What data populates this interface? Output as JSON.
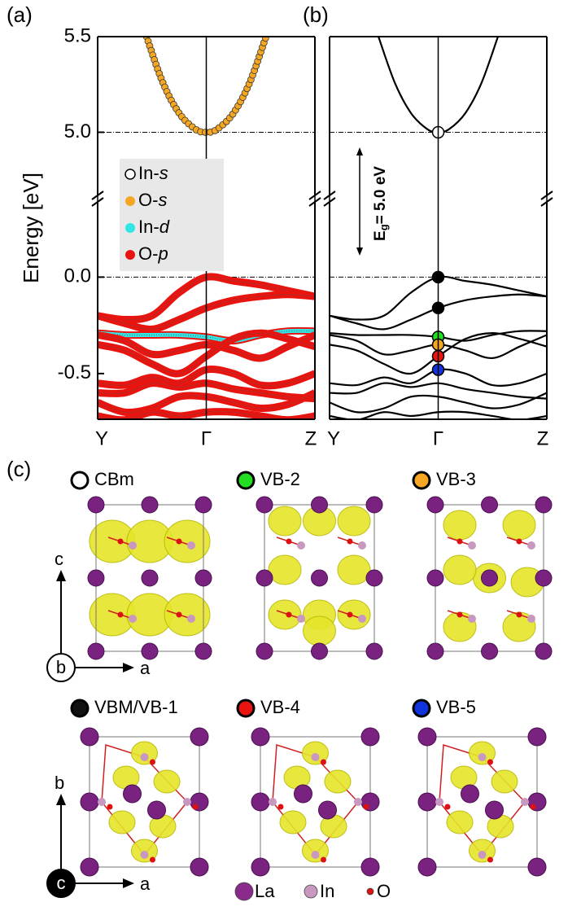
{
  "panels": {
    "a": "(a)",
    "b": "(b)",
    "c": "(c)"
  },
  "band_plot": {
    "y_label": "Energy [eV]",
    "ylim_upper": [
      4.67,
      5.5
    ],
    "ylim_lower": [
      -0.737,
      0.39
    ],
    "yticks_upper": [
      {
        "value": 5,
        "label": "5.0"
      },
      {
        "value": 5.5,
        "label": "5.5"
      }
    ],
    "yticks_lower": [
      {
        "value": 0,
        "label": "0.0"
      },
      {
        "value": -0.5,
        "label": "-0.5"
      }
    ],
    "xlim": [
      -1,
      1
    ],
    "xticks": [
      {
        "value": -1,
        "label": "Y"
      },
      {
        "value": 0,
        "label": "Γ"
      },
      {
        "value": 1,
        "label": "Z"
      }
    ],
    "reference_lines": [
      5,
      0
    ],
    "legend": [
      {
        "prefix": "In-",
        "orbital": "s",
        "color": "#ffffff"
      },
      {
        "prefix": "O-",
        "orbital": "s",
        "color": "#f5a623"
      },
      {
        "prefix": "In-",
        "orbital": "d",
        "color": "#33e6e6"
      },
      {
        "prefix": "O-",
        "orbital": "p",
        "color": "#e8140f"
      }
    ],
    "gap_label": {
      "main": "E",
      "sub": "g",
      "rest": "= 5.0 eV"
    },
    "conduction_band": {
      "x": [
        -0.55,
        -0.4,
        -0.25,
        -0.1,
        0,
        0.1,
        0.25,
        0.4,
        0.55
      ],
      "values": [
        5.5,
        5.26,
        5.1,
        5.016,
        5.0,
        5.016,
        5.1,
        5.26,
        5.5
      ]
    },
    "valence_x": [
      -1,
      -0.75,
      -0.5,
      -0.25,
      0,
      0.25,
      0.5,
      0.75,
      1
    ],
    "valence_bands": [
      [
        -0.2,
        -0.22,
        -0.2,
        -0.08,
        0,
        -0.02,
        -0.04,
        -0.07,
        -0.1
      ],
      [
        -0.2,
        -0.24,
        -0.27,
        -0.22,
        -0.16,
        -0.12,
        -0.1,
        -0.09,
        -0.1
      ],
      [
        -0.29,
        -0.3,
        -0.3,
        -0.3,
        -0.31,
        -0.33,
        -0.3,
        -0.28,
        -0.28
      ],
      [
        -0.3,
        -0.33,
        -0.4,
        -0.38,
        -0.35,
        -0.38,
        -0.42,
        -0.36,
        -0.3
      ],
      [
        -0.35,
        -0.38,
        -0.45,
        -0.5,
        -0.41,
        -0.32,
        -0.29,
        -0.32,
        -0.36
      ],
      [
        -0.55,
        -0.56,
        -0.52,
        -0.55,
        -0.48,
        -0.5,
        -0.56,
        -0.55,
        -0.5
      ],
      [
        -0.6,
        -0.6,
        -0.55,
        -0.57,
        -0.55,
        -0.58,
        -0.6,
        -0.62,
        -0.63
      ],
      [
        -0.65,
        -0.7,
        -0.68,
        -0.62,
        -0.62,
        -0.65,
        -0.68,
        -0.66,
        -0.6
      ],
      [
        -0.72,
        -0.74,
        -0.7,
        -0.72,
        -0.7,
        -0.7,
        -0.72,
        -0.74,
        -0.72
      ]
    ],
    "in_d_band": 2,
    "gamma_states": [
      {
        "energy": 5.0,
        "color": "#ffffff"
      },
      {
        "energy": 0,
        "color": "#000000"
      },
      {
        "energy": -0.16,
        "color": "#000000"
      },
      {
        "energy": -0.31,
        "color": "#22dd22"
      },
      {
        "energy": -0.35,
        "color": "#f5a623"
      },
      {
        "energy": -0.41,
        "color": "#e8140f"
      },
      {
        "energy": -0.48,
        "color": "#1133dd"
      }
    ]
  },
  "states": [
    {
      "label": "CBm",
      "color": "#ffffff"
    },
    {
      "label": "VB-2",
      "color": "#22dd22"
    },
    {
      "label": "VB-3",
      "color": "#f5a623"
    },
    {
      "label": "VBM/VB-1",
      "color": "#111111"
    },
    {
      "label": "VB-4",
      "color": "#e8140f"
    },
    {
      "label": "VB-5",
      "color": "#1133dd"
    }
  ],
  "axes_row1": {
    "up": "c",
    "into": "b",
    "right": "a"
  },
  "axes_row2": {
    "up": "b",
    "into": "c",
    "right": "a"
  },
  "atoms": [
    {
      "label": "La",
      "color": "#8a2a8a"
    },
    {
      "label": "In",
      "color": "#c898c0"
    },
    {
      "label": "O",
      "color": "#dd1111"
    }
  ]
}
